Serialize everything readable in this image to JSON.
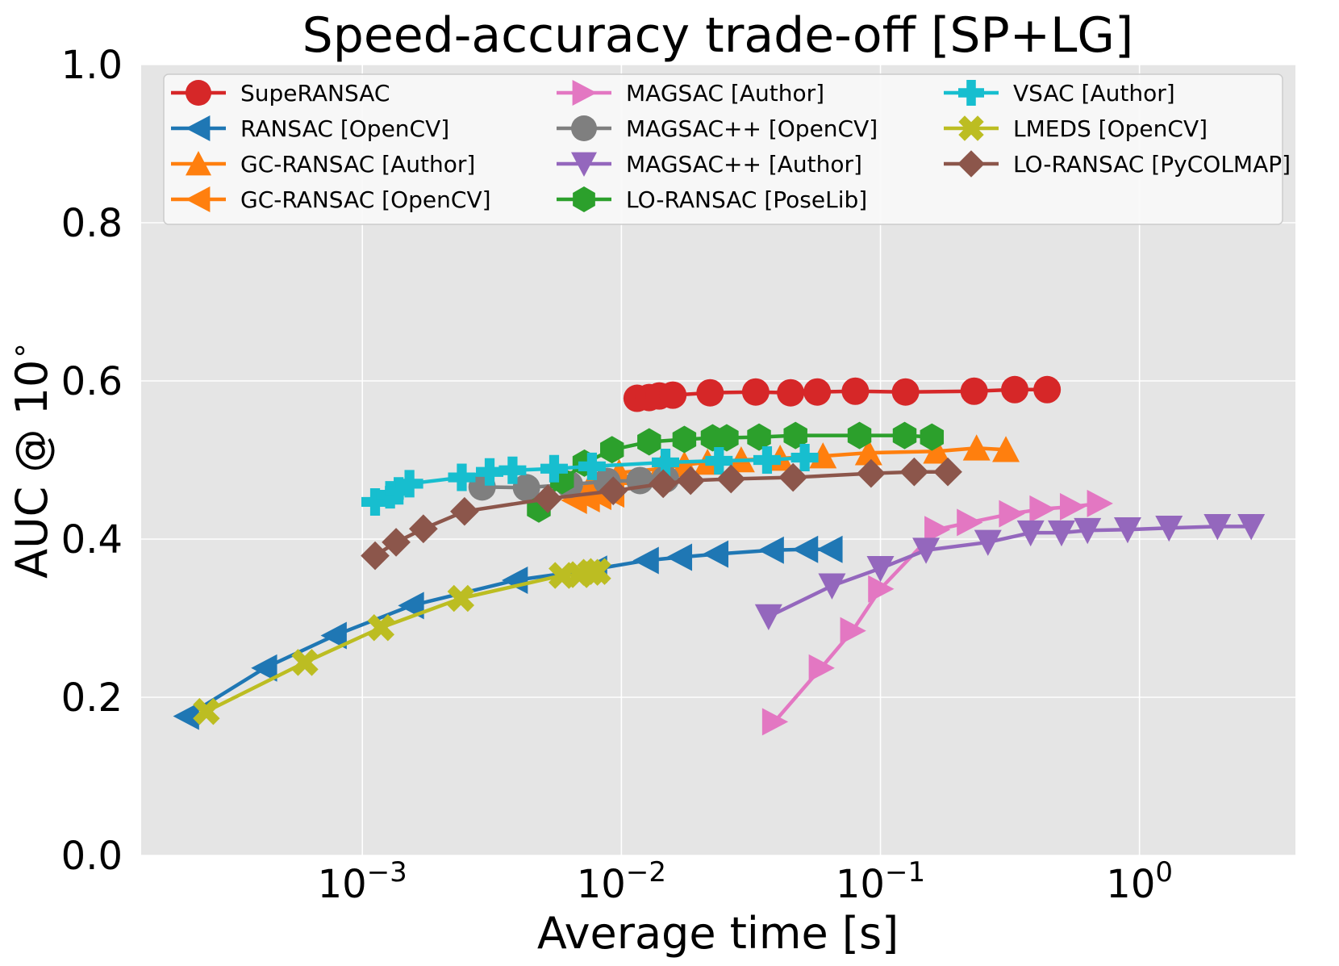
{
  "chart_data": {
    "type": "line",
    "title": "Speed-accuracy trade-off [SP+LG]",
    "xlabel": "Average time [s]",
    "ylabel": "AUC @ 10",
    "ylabel_superscript": "∘",
    "xscale": "log",
    "xlim": [
      0.00014,
      4.0
    ],
    "ylim": [
      0.0,
      1.0
    ],
    "grid": true,
    "legend_position": "top",
    "x_ticks": [
      {
        "value": 0.001,
        "base": "10",
        "exp": "−3"
      },
      {
        "value": 0.01,
        "base": "10",
        "exp": "−2"
      },
      {
        "value": 0.1,
        "base": "10",
        "exp": "−1"
      },
      {
        "value": 1.0,
        "base": "10",
        "exp": "0"
      }
    ],
    "y_ticks": [
      "0.0",
      "0.2",
      "0.4",
      "0.6",
      "0.8",
      "1.0"
    ],
    "series": [
      {
        "name": "SupeRANSAC",
        "color": "#d62728",
        "marker": "circle",
        "x": [
          0.0115,
          0.0128,
          0.014,
          0.0158,
          0.022,
          0.033,
          0.045,
          0.057,
          0.08,
          0.125,
          0.23,
          0.33,
          0.44
        ],
        "y": [
          0.578,
          0.579,
          0.581,
          0.582,
          0.585,
          0.586,
          0.585,
          0.586,
          0.587,
          0.586,
          0.587,
          0.589,
          0.589
        ]
      },
      {
        "name": "RANSAC [OpenCV]",
        "color": "#1f77b4",
        "marker": "triangle-left",
        "x": [
          0.00021,
          0.00042,
          0.00078,
          0.00155,
          0.0039,
          0.0079,
          0.0125,
          0.0168,
          0.0232,
          0.038,
          0.0515,
          0.064
        ],
        "y": [
          0.176,
          0.237,
          0.278,
          0.316,
          0.348,
          0.362,
          0.373,
          0.377,
          0.381,
          0.386,
          0.387,
          0.387
        ]
      },
      {
        "name": "GC-RANSAC [Author]",
        "color": "#ff7f0e",
        "marker": "triangle-up",
        "x": [
          0.0078,
          0.0098,
          0.0142,
          0.0175,
          0.0215,
          0.029,
          0.041,
          0.06,
          0.09,
          0.165,
          0.235,
          0.305
        ],
        "y": [
          0.475,
          0.484,
          0.489,
          0.494,
          0.497,
          0.5,
          0.502,
          0.505,
          0.509,
          0.511,
          0.515,
          0.513
        ]
      },
      {
        "name": "GC-RANSAC [OpenCV]",
        "color": "#ff7f0e",
        "marker": "triangle-left",
        "x": [
          0.0066,
          0.0074,
          0.0082,
          0.0092
        ],
        "y": [
          0.449,
          0.451,
          0.454,
          0.457
        ]
      },
      {
        "name": "MAGSAC [Author]",
        "color": "#e377c2",
        "marker": "triangle-right",
        "x": [
          0.039,
          0.059,
          0.078,
          0.1,
          0.165,
          0.22,
          0.32,
          0.42,
          0.55,
          0.7
        ],
        "y": [
          0.169,
          0.237,
          0.284,
          0.337,
          0.412,
          0.421,
          0.432,
          0.438,
          0.441,
          0.445
        ]
      },
      {
        "name": "MAGSAC++ [OpenCV]",
        "color": "#7f7f7f",
        "marker": "circle",
        "x": [
          0.0029,
          0.0043,
          0.0063,
          0.0088,
          0.0118,
          0.0148
        ],
        "y": [
          0.466,
          0.465,
          0.469,
          0.473,
          0.474,
          0.476
        ]
      },
      {
        "name": "MAGSAC++ [Author]",
        "color": "#9467bd",
        "marker": "triangle-down",
        "x": [
          0.037,
          0.065,
          0.1,
          0.15,
          0.26,
          0.38,
          0.5,
          0.63,
          0.9,
          1.3,
          2.0,
          2.7
        ],
        "y": [
          0.302,
          0.341,
          0.363,
          0.386,
          0.396,
          0.408,
          0.408,
          0.411,
          0.412,
          0.414,
          0.416,
          0.416
        ]
      },
      {
        "name": "LO-RANSAC [PoseLib]",
        "color": "#2ca02c",
        "marker": "hexagon",
        "x": [
          0.0048,
          0.0059,
          0.0072,
          0.0092,
          0.0128,
          0.0175,
          0.0225,
          0.0255,
          0.034,
          0.047,
          0.083,
          0.124,
          0.158
        ],
        "y": [
          0.438,
          0.474,
          0.496,
          0.513,
          0.523,
          0.526,
          0.528,
          0.528,
          0.529,
          0.531,
          0.531,
          0.531,
          0.529
        ]
      },
      {
        "name": "VSAC [Author]",
        "color": "#17becf",
        "marker": "plus",
        "x": [
          0.00112,
          0.00128,
          0.00138,
          0.00152,
          0.00242,
          0.0031,
          0.0038,
          0.0055,
          0.0077,
          0.0148,
          0.0238,
          0.0365,
          0.051
        ],
        "y": [
          0.447,
          0.456,
          0.461,
          0.47,
          0.478,
          0.485,
          0.487,
          0.489,
          0.492,
          0.497,
          0.499,
          0.5,
          0.503
        ]
      },
      {
        "name": "LMEDS [OpenCV]",
        "color": "#bcbd22",
        "marker": "x",
        "x": [
          0.00025,
          0.0006,
          0.00118,
          0.0024,
          0.0059,
          0.0069,
          0.0076,
          0.0081
        ],
        "y": [
          0.182,
          0.244,
          0.288,
          0.325,
          0.354,
          0.355,
          0.358,
          0.359
        ]
      },
      {
        "name": "LO-RANSAC [PyCOLMAP]",
        "color": "#8c564b",
        "marker": "diamond",
        "x": [
          0.00112,
          0.00135,
          0.00172,
          0.00248,
          0.0052,
          0.0093,
          0.0145,
          0.0185,
          0.0265,
          0.046,
          0.092,
          0.135,
          0.182
        ],
        "y": [
          0.379,
          0.396,
          0.413,
          0.435,
          0.451,
          0.461,
          0.47,
          0.474,
          0.476,
          0.478,
          0.483,
          0.485,
          0.485
        ]
      }
    ]
  }
}
